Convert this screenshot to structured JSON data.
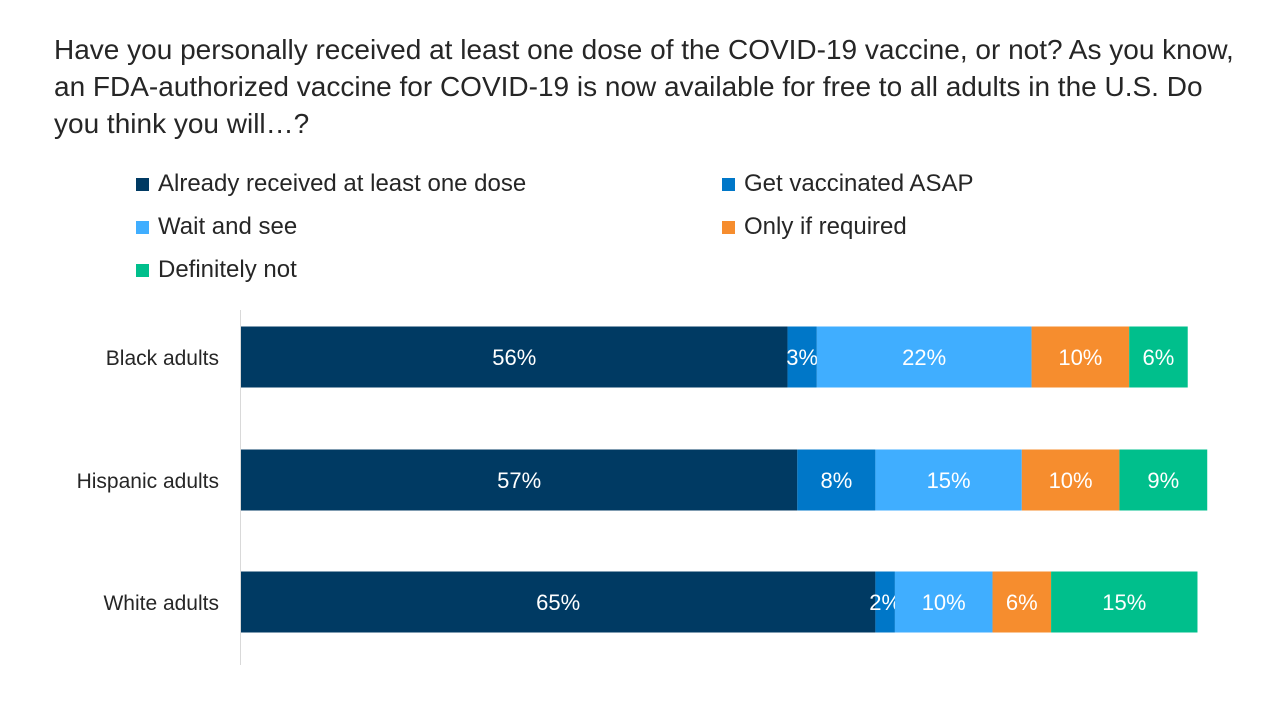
{
  "question": "Have you personally received at least one dose of the COVID-19 vaccine, or not? As you know, an FDA-authorized vaccine for COVID-19 is now available for free to all adults in the U.S. Do you think you will…?",
  "chart_data": {
    "type": "bar",
    "orientation": "horizontal",
    "stacked": true,
    "title": "",
    "xlabel": "",
    "ylabel": "",
    "categories": [
      "Black adults",
      "Hispanic adults",
      "White adults"
    ],
    "series": [
      {
        "name": "Already received at least one dose",
        "color": "#003A63",
        "values": [
          56,
          57,
          65
        ]
      },
      {
        "name": "Get vaccinated ASAP",
        "color": "#0077C8",
        "values": [
          3,
          8,
          2
        ]
      },
      {
        "name": "Wait and see",
        "color": "#40AEFF",
        "values": [
          22,
          15,
          10
        ]
      },
      {
        "name": "Only if required",
        "color": "#F68D2E",
        "values": [
          10,
          10,
          6
        ]
      },
      {
        "name": "Definitely not",
        "color": "#00BF8C",
        "values": [
          6,
          9,
          15
        ]
      }
    ],
    "value_suffix": "%",
    "legend_position": "top",
    "grid": false
  }
}
